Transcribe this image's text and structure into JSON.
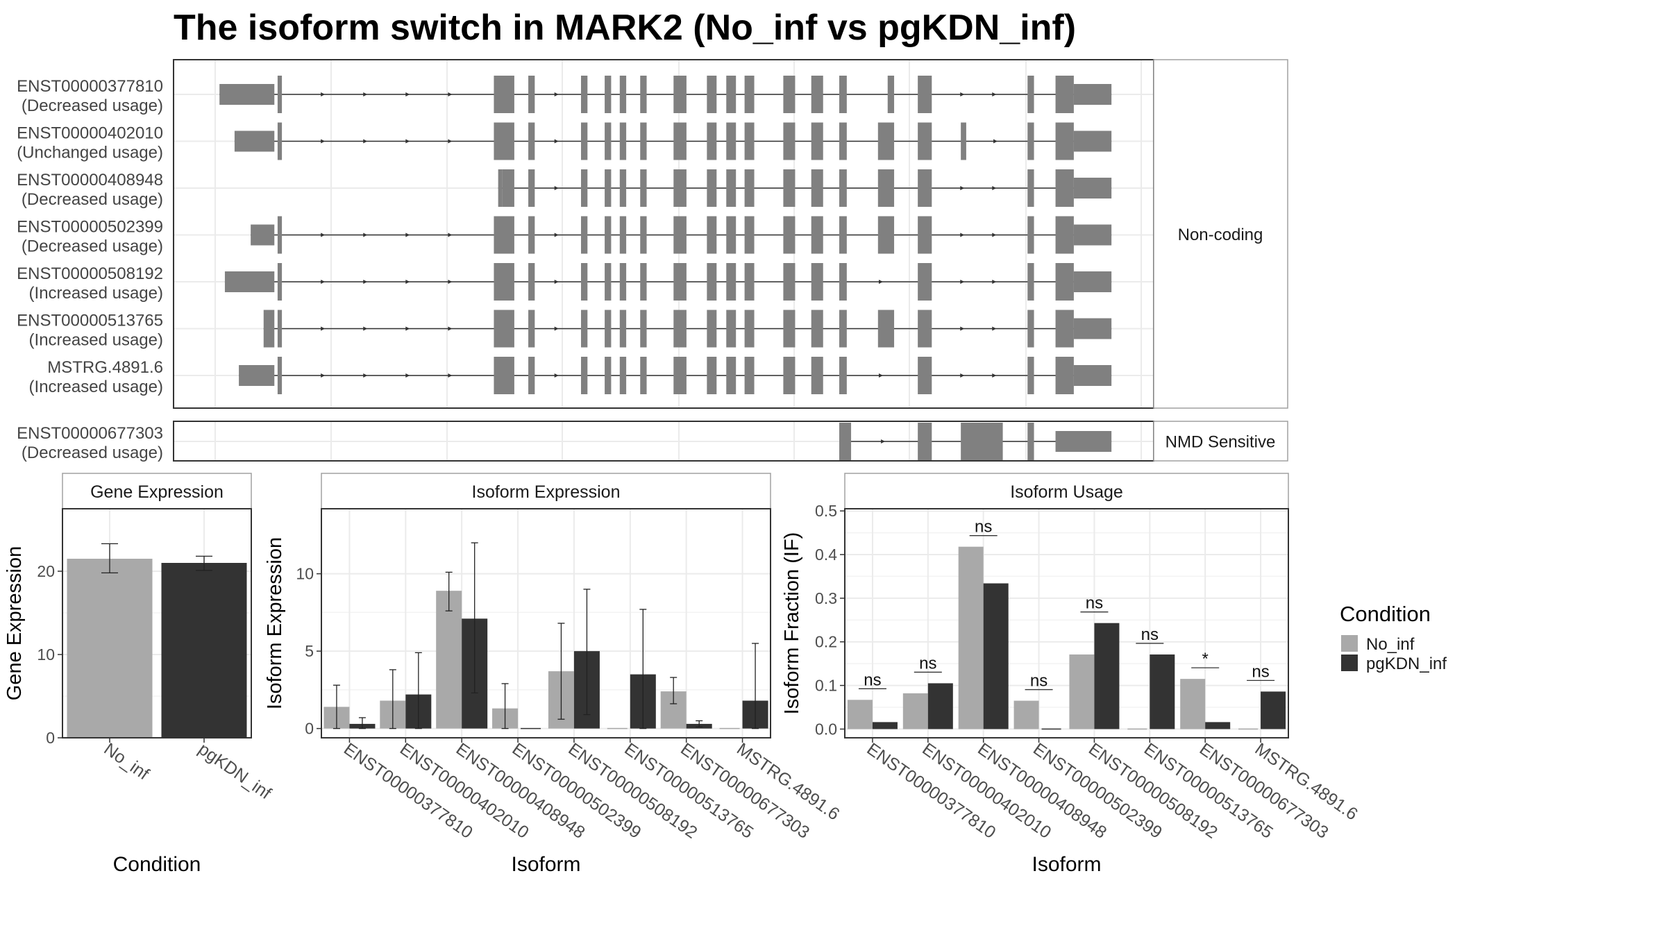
{
  "title": "The isoform switch in MARK2 (No_inf vs pgKDN_inf)",
  "colors": {
    "no_inf": "#a9a9a9",
    "pgkdn_inf": "#333333",
    "exon": "#808080",
    "grid": "#ebebeb",
    "strip_bg": "#ffffff",
    "border": "#333333",
    "panel_border": "#a0a0a0"
  },
  "structure_panel": {
    "groups": [
      {
        "label": "Non-coding",
        "isoforms": [
          {
            "id": "ENST00000377810",
            "status": "(Decreased usage)",
            "exons": [
              [
                204,
                255
              ],
              [
                258,
                262
              ],
              [
                459,
                478
              ],
              [
                491,
                497
              ],
              [
                540,
                546
              ],
              [
                562,
                568
              ],
              [
                576,
                582
              ],
              [
                595,
                601
              ],
              [
                626,
                638
              ],
              [
                657,
                666
              ],
              [
                675,
                684
              ],
              [
                692,
                701
              ],
              [
                728,
                739
              ],
              [
                754,
                765
              ],
              [
                780,
                787
              ],
              [
                825,
                831
              ],
              [
                853,
                866
              ],
              [
                955,
                961
              ],
              [
                981,
                998
              ],
              [
                998,
                1033
              ]
            ]
          },
          {
            "id": "ENST00000402010",
            "status": "(Unchanged usage)",
            "exons": [
              [
                218,
                255
              ],
              [
                258,
                262
              ],
              [
                459,
                478
              ],
              [
                491,
                497
              ],
              [
                540,
                546
              ],
              [
                562,
                568
              ],
              [
                576,
                582
              ],
              [
                595,
                601
              ],
              [
                626,
                638
              ],
              [
                657,
                666
              ],
              [
                675,
                684
              ],
              [
                692,
                701
              ],
              [
                728,
                739
              ],
              [
                754,
                765
              ],
              [
                780,
                787
              ],
              [
                816,
                831
              ],
              [
                853,
                866
              ],
              [
                893,
                898
              ],
              [
                955,
                961
              ],
              [
                981,
                998
              ],
              [
                998,
                1033
              ]
            ]
          },
          {
            "id": "ENST00000408948",
            "status": "(Decreased usage)",
            "exons": [
              [
                463,
                467
              ],
              [
                467,
                478
              ],
              [
                491,
                497
              ],
              [
                540,
                546
              ],
              [
                562,
                568
              ],
              [
                576,
                582
              ],
              [
                595,
                601
              ],
              [
                626,
                638
              ],
              [
                657,
                666
              ],
              [
                675,
                684
              ],
              [
                692,
                701
              ],
              [
                728,
                739
              ],
              [
                754,
                765
              ],
              [
                780,
                787
              ],
              [
                816,
                831
              ],
              [
                853,
                866
              ],
              [
                955,
                961
              ],
              [
                981,
                998
              ],
              [
                998,
                1033
              ]
            ]
          },
          {
            "id": "ENST00000502399",
            "status": "(Decreased usage)",
            "exons": [
              [
                233,
                255
              ],
              [
                258,
                262
              ],
              [
                459,
                478
              ],
              [
                491,
                497
              ],
              [
                540,
                546
              ],
              [
                562,
                568
              ],
              [
                576,
                582
              ],
              [
                595,
                601
              ],
              [
                626,
                638
              ],
              [
                657,
                666
              ],
              [
                675,
                684
              ],
              [
                692,
                701
              ],
              [
                728,
                739
              ],
              [
                754,
                765
              ],
              [
                780,
                787
              ],
              [
                816,
                831
              ],
              [
                853,
                866
              ],
              [
                955,
                961
              ],
              [
                981,
                998
              ],
              [
                998,
                1033
              ]
            ]
          },
          {
            "id": "ENST00000508192",
            "status": "(Increased usage)",
            "exons": [
              [
                209,
                255
              ],
              [
                258,
                262
              ],
              [
                459,
                478
              ],
              [
                491,
                497
              ],
              [
                540,
                546
              ],
              [
                562,
                568
              ],
              [
                576,
                582
              ],
              [
                595,
                601
              ],
              [
                626,
                638
              ],
              [
                657,
                666
              ],
              [
                675,
                684
              ],
              [
                692,
                701
              ],
              [
                728,
                739
              ],
              [
                754,
                765
              ],
              [
                780,
                787
              ],
              [
                853,
                866
              ],
              [
                955,
                961
              ],
              [
                981,
                998
              ],
              [
                998,
                1033
              ]
            ]
          },
          {
            "id": "ENST00000513765",
            "status": "(Increased usage)",
            "exons": [
              [
                245,
                255
              ],
              [
                258,
                262
              ],
              [
                459,
                478
              ],
              [
                491,
                497
              ],
              [
                540,
                546
              ],
              [
                562,
                568
              ],
              [
                576,
                582
              ],
              [
                595,
                601
              ],
              [
                626,
                638
              ],
              [
                657,
                666
              ],
              [
                675,
                684
              ],
              [
                692,
                701
              ],
              [
                728,
                739
              ],
              [
                754,
                765
              ],
              [
                780,
                787
              ],
              [
                816,
                831
              ],
              [
                853,
                866
              ],
              [
                955,
                961
              ],
              [
                981,
                998
              ],
              [
                998,
                1033
              ]
            ]
          },
          {
            "id": "MSTRG.4891.6",
            "status": "(Increased usage)",
            "exons": [
              [
                222,
                255
              ],
              [
                258,
                262
              ],
              [
                459,
                478
              ],
              [
                491,
                497
              ],
              [
                540,
                546
              ],
              [
                562,
                568
              ],
              [
                576,
                582
              ],
              [
                595,
                601
              ],
              [
                626,
                638
              ],
              [
                657,
                666
              ],
              [
                675,
                684
              ],
              [
                692,
                701
              ],
              [
                728,
                739
              ],
              [
                754,
                765
              ],
              [
                780,
                787
              ],
              [
                853,
                866
              ],
              [
                955,
                961
              ],
              [
                981,
                998
              ],
              [
                998,
                1033
              ]
            ]
          }
        ]
      },
      {
        "label": "NMD Sensitive",
        "isoforms": [
          {
            "id": "ENST00000677303",
            "status": "(Decreased usage)",
            "exons": [
              [
                780,
                791
              ],
              [
                853,
                866
              ],
              [
                893,
                900
              ],
              [
                900,
                932
              ],
              [
                955,
                961
              ],
              [
                981,
                1033
              ]
            ]
          }
        ]
      }
    ]
  },
  "chart_data": [
    {
      "type": "bar",
      "title": "Gene Expression",
      "xlabel": "Condition",
      "ylabel": "Gene Expression",
      "ylim": [
        0,
        27.5
      ],
      "yticks": [
        0,
        10,
        20
      ],
      "categories": [
        "No_inf",
        "pgKDN_inf"
      ],
      "series": [
        {
          "name": "No_inf",
          "values": [
            21.5,
            null
          ],
          "err_low": [
            19.8,
            null
          ],
          "err_high": [
            23.3,
            null
          ]
        },
        {
          "name": "pgKDN_inf",
          "values": [
            null,
            21.0
          ],
          "err_low": [
            null,
            20.1
          ],
          "err_high": [
            null,
            21.8
          ]
        }
      ]
    },
    {
      "type": "bar",
      "title": "Isoform Expression",
      "xlabel": "Isoform",
      "ylabel": "Isoform Expression",
      "ylim": [
        -0.6,
        14.2
      ],
      "yticks": [
        0,
        5,
        10
      ],
      "categories": [
        "ENST00000377810",
        "ENST00000402010",
        "ENST00000408948",
        "ENST00000502399",
        "ENST00000508192",
        "ENST00000513765",
        "ENST00000677303",
        "MSTRG.4891.6"
      ],
      "series": [
        {
          "name": "No_inf",
          "values": [
            1.4,
            1.8,
            8.9,
            1.3,
            3.7,
            0.0,
            2.4,
            0.0
          ],
          "err_low": [
            0.0,
            0.0,
            7.6,
            0.0,
            0.6,
            0.0,
            1.6,
            0.0
          ],
          "err_high": [
            2.8,
            3.8,
            10.1,
            2.9,
            6.8,
            0.0,
            3.3,
            0.0
          ]
        },
        {
          "name": "pgKDN_inf",
          "values": [
            0.3,
            2.2,
            7.1,
            0.0,
            5.0,
            3.5,
            0.3,
            1.8
          ],
          "err_low": [
            0.0,
            0.0,
            2.3,
            0.0,
            0.9,
            0.0,
            0.1,
            0.0
          ],
          "err_high": [
            0.7,
            4.9,
            12.0,
            0.0,
            9.0,
            7.7,
            0.5,
            5.5
          ]
        }
      ]
    },
    {
      "type": "bar",
      "title": "Isoform Usage",
      "xlabel": "Isoform",
      "ylabel": "Isoform Fraction (IF)",
      "ylim": [
        -0.02,
        0.505
      ],
      "yticks": [
        0.0,
        0.1,
        0.2,
        0.3,
        0.4,
        0.5
      ],
      "categories": [
        "ENST00000377810",
        "ENST00000402010",
        "ENST00000408948",
        "ENST00000502399",
        "ENST00000508192",
        "ENST00000513765",
        "ENST00000677303",
        "MSTRG.4891.6"
      ],
      "series": [
        {
          "name": "No_inf",
          "values": [
            0.067,
            0.082,
            0.418,
            0.065,
            0.171,
            0.0,
            0.115,
            0.0
          ]
        },
        {
          "name": "pgKDN_inf",
          "values": [
            0.016,
            0.105,
            0.334,
            0.0,
            0.243,
            0.171,
            0.016,
            0.086
          ]
        }
      ],
      "significance": [
        "ns",
        "ns",
        "ns",
        "ns",
        "ns",
        "ns",
        "*",
        "ns"
      ]
    }
  ],
  "legend": {
    "title": "Condition",
    "items": [
      "No_inf",
      "pgKDN_inf"
    ]
  }
}
